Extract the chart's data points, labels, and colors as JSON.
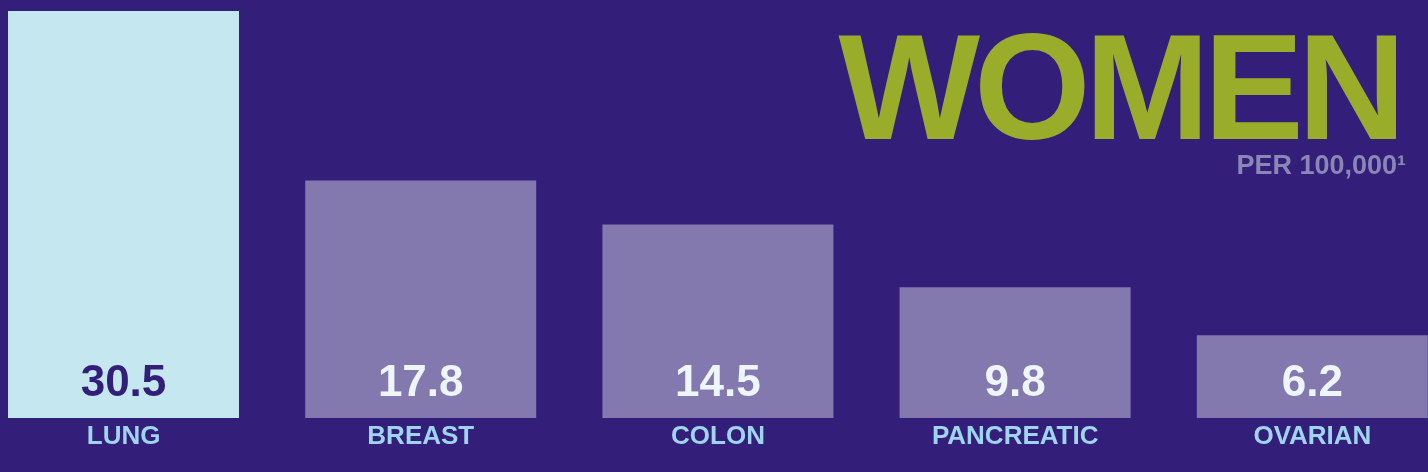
{
  "chart_data": {
    "type": "bar",
    "title": "WOMEN",
    "subtitle": "PER 100,000¹",
    "categories": [
      "LUNG",
      "BREAST",
      "COLON",
      "PANCREATIC",
      "OVARIAN"
    ],
    "values": [
      30.5,
      17.8,
      14.5,
      9.8,
      6.2
    ],
    "colors": [
      "#c5e8f0",
      "#8479ae",
      "#8479ae",
      "#8479ae",
      "#8479ae"
    ],
    "data_labels": true,
    "grid": false,
    "legend": false
  }
}
